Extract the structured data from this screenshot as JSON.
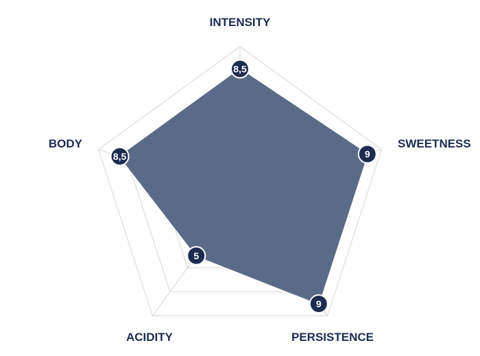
{
  "chart_data": {
    "type": "radar",
    "axes": [
      "INTENSITY",
      "SWEETNESS",
      "PERSISTENCE",
      "ACIDITY",
      "BODY"
    ],
    "values": [
      8.5,
      9,
      9,
      5,
      8.5
    ],
    "value_labels": [
      "8,5",
      "9",
      "9",
      "5",
      "8,5"
    ],
    "range": [
      0,
      10
    ],
    "grid_levels": 5,
    "grid": true,
    "legend": "none"
  },
  "colors": {
    "fill": "#5a6b88",
    "marker": "#1c2b50",
    "marker_text": "#ffffff",
    "axis_label": "#1c2b50",
    "grid": "#d6d6d6"
  }
}
